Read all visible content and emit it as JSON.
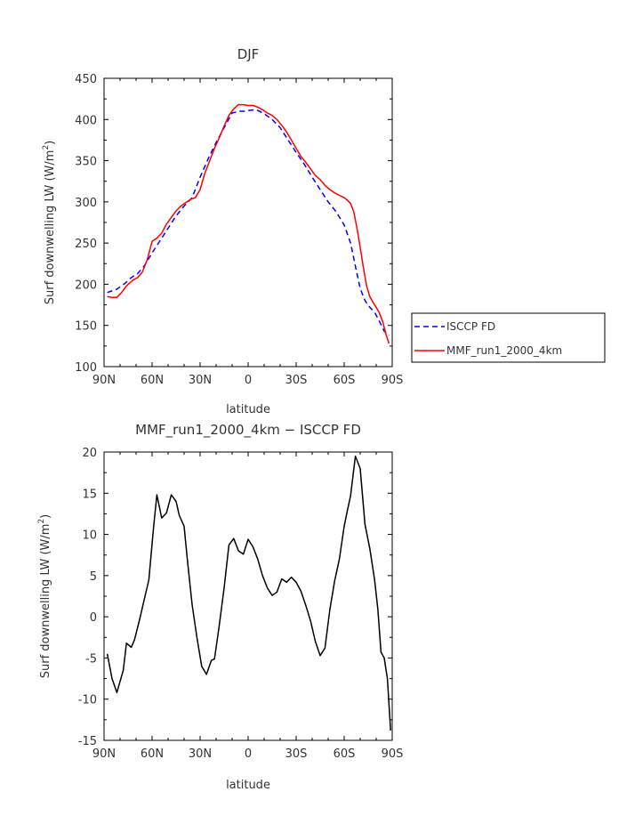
{
  "chart_data": [
    {
      "type": "line",
      "title": "DJF",
      "xlabel": "latitude",
      "ylabel": "Surf downwelling LW (W/m²)",
      "ylabel_main": "Surf downwelling LW (W/m",
      "ylabel_sup": "2",
      "ylabel_end": ")",
      "xlim": [
        90,
        -90
      ],
      "ylim": [
        100,
        450
      ],
      "xticks": [
        90,
        60,
        30,
        0,
        -30,
        -60,
        -90
      ],
      "xtick_labels": [
        "90N",
        "60N",
        "30N",
        "0",
        "30S",
        "60S",
        "90S"
      ],
      "yticks": [
        100,
        150,
        200,
        250,
        300,
        350,
        400,
        450
      ],
      "ytick_labels": [
        "100",
        "150",
        "200",
        "250",
        "300",
        "350",
        "400",
        "450"
      ],
      "legend": "right",
      "series": [
        {
          "name": "ISCCP FD",
          "color": "#0000ff",
          "dash": "dashed",
          "x": [
            88,
            82,
            77,
            73,
            69,
            65,
            60,
            55,
            50,
            45,
            40,
            35,
            30,
            25,
            20,
            15,
            10,
            5,
            2,
            0,
            -5,
            -10,
            -15,
            -20,
            -25,
            -30,
            -35,
            -40,
            -45,
            -50,
            -55,
            -60,
            -64,
            -67,
            -70,
            -73,
            -76,
            -79,
            -82,
            -85,
            -88
          ],
          "y": [
            190,
            194,
            201,
            208,
            213,
            222,
            238,
            253,
            268,
            283,
            295,
            305,
            330,
            352,
            372,
            390,
            408,
            410,
            410,
            411,
            412,
            407,
            400,
            390,
            375,
            360,
            346,
            330,
            315,
            300,
            288,
            272,
            250,
            222,
            195,
            180,
            172,
            166,
            155,
            143,
            138
          ]
        },
        {
          "name": "MMF_run1_2000_4km",
          "color": "#ff0000",
          "dash": "solid",
          "x": [
            88,
            85,
            82,
            79,
            76,
            72,
            69,
            66,
            63,
            60,
            57,
            54,
            51,
            48,
            45,
            42,
            39,
            36,
            33,
            30,
            27,
            24,
            21,
            18,
            15,
            12,
            9,
            6,
            3,
            0,
            -3,
            -6,
            -9,
            -12,
            -15,
            -18,
            -21,
            -24,
            -27,
            -30,
            -33,
            -36,
            -39,
            -42,
            -45,
            -48,
            -51,
            -54,
            -57,
            -60,
            -62,
            -64,
            -66,
            -68,
            -70,
            -72,
            -74,
            -76,
            -78,
            -80,
            -82,
            -84,
            -86,
            -88
          ],
          "y": [
            185,
            184,
            184,
            190,
            198,
            205,
            208,
            215,
            230,
            252,
            256,
            262,
            273,
            281,
            289,
            295,
            299,
            303,
            305,
            315,
            335,
            350,
            365,
            378,
            392,
            405,
            413,
            418,
            418,
            417,
            417,
            415,
            412,
            408,
            405,
            400,
            393,
            385,
            375,
            365,
            355,
            348,
            340,
            332,
            327,
            320,
            315,
            311,
            308,
            305,
            302,
            298,
            288,
            268,
            245,
            220,
            198,
            185,
            178,
            172,
            165,
            155,
            140,
            128
          ]
        }
      ]
    },
    {
      "type": "line",
      "title": "MMF_run1_2000_4km − ISCCP FD",
      "xlabel": "latitude",
      "ylabel": "Surf downwelling LW (W/m²)",
      "ylabel_main": "Surf downwelling LW (W/m",
      "ylabel_sup": "2",
      "ylabel_end": ")",
      "xlim": [
        90,
        -90
      ],
      "ylim": [
        -15,
        20
      ],
      "xticks": [
        90,
        60,
        30,
        0,
        -30,
        -60,
        -90
      ],
      "xtick_labels": [
        "90N",
        "60N",
        "30N",
        "0",
        "30S",
        "60S",
        "90S"
      ],
      "yticks": [
        -15,
        -10,
        -5,
        0,
        5,
        10,
        15,
        20
      ],
      "ytick_labels": [
        "-15",
        "-10",
        "-5",
        "0",
        "5",
        "10",
        "15",
        "20"
      ],
      "series": [
        {
          "color": "#000000",
          "x": [
            88,
            85,
            82,
            78,
            76,
            73,
            71,
            68,
            65,
            62,
            59,
            57,
            54,
            51,
            48,
            45,
            43,
            40,
            38,
            35,
            32,
            29,
            26,
            23,
            21,
            18,
            15,
            12,
            9,
            6,
            3,
            0,
            -3,
            -6,
            -9,
            -12,
            -15,
            -18,
            -21,
            -24,
            -27,
            -30,
            -33,
            -36,
            -39,
            -42,
            -45,
            -48,
            -51,
            -54,
            -57,
            -60,
            -62,
            -64,
            -67,
            -70,
            -73,
            -76,
            -79,
            -81,
            -83,
            -85,
            -87,
            -89
          ],
          "y": [
            -4.5,
            -7.5,
            -9.2,
            -6.5,
            -3.2,
            -3.7,
            -2.8,
            -0.5,
            2,
            4.5,
            11,
            14.8,
            12,
            12.6,
            14.8,
            14,
            12.3,
            11,
            7,
            1.5,
            -2.5,
            -6,
            -7,
            -5.3,
            -5.1,
            -1,
            3.5,
            8.7,
            9.5,
            8,
            7.6,
            9.4,
            8.5,
            7,
            5,
            3.5,
            2.6,
            3,
            4.6,
            4.2,
            4.8,
            4.2,
            3.1,
            1.4,
            -0.5,
            -3,
            -4.7,
            -3.8,
            0.8,
            4.3,
            7,
            11,
            12.9,
            14.7,
            19.5,
            18,
            11.2,
            8.3,
            4.5,
            1,
            -4.3,
            -5,
            -7.5,
            -13.8
          ]
        }
      ]
    }
  ]
}
